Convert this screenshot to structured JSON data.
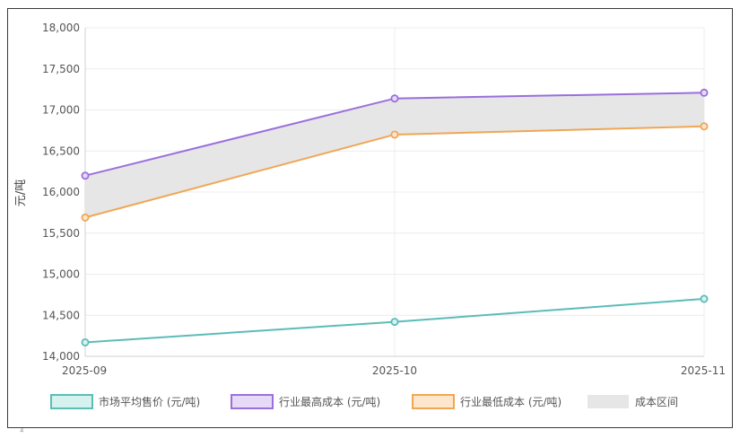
{
  "chart_data": {
    "type": "line",
    "categories": [
      "2025-09",
      "2025-10",
      "2025-11"
    ],
    "series": [
      {
        "name": "市场平均售价 (元/吨)",
        "values": [
          14170,
          14420,
          14700
        ],
        "color": "#5bbcb8",
        "fill": "#d6f2ef"
      },
      {
        "name": "行业最高成本 (元/吨)",
        "values": [
          16200,
          17140,
          17210
        ],
        "color": "#9b6fdc",
        "fill": "#e6daf7"
      },
      {
        "name": "行业最低成本 (元/吨)",
        "values": [
          15690,
          16700,
          16800
        ],
        "color": "#f0a655",
        "fill": "#fde6cc"
      }
    ],
    "band": {
      "name": "成本区间",
      "color": "#e6e6e6"
    },
    "ylabel": "元/吨",
    "xlabel": "",
    "ylim": [
      14000,
      18000
    ],
    "yticks": [
      "14,000",
      "14,500",
      "15,000",
      "15,500",
      "16,000",
      "16,500",
      "17,000",
      "17,500",
      "18,000"
    ],
    "grid": true,
    "legend_position": "bottom"
  },
  "footer_glyph": "⁴"
}
